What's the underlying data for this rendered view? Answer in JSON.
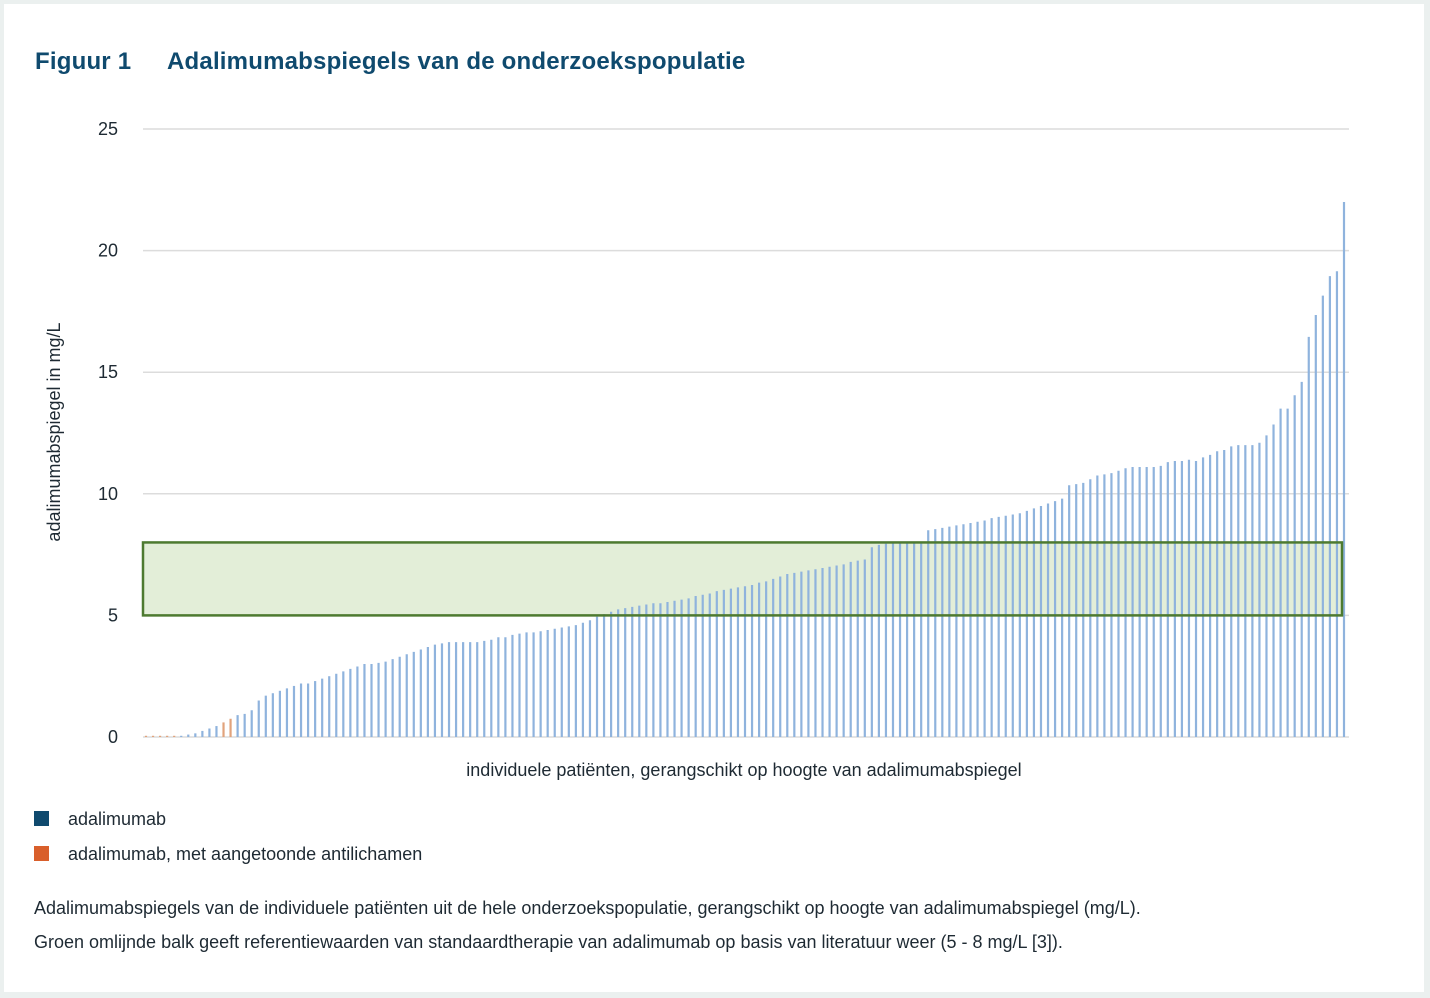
{
  "figure": {
    "label": "Figuur 1",
    "title": "Adalimumabspiegels van de onderzoekspopulatie"
  },
  "legend": [
    {
      "label": "adalimumab",
      "color": "#0f4a6e"
    },
    {
      "label": "adalimumab, met aangetoonde antilichamen",
      "color": "#d95f2b"
    }
  ],
  "caption": [
    "Adalimumabspiegels van de individuele patiënten uit de hele onderzoekspopulatie, gerangschikt op hoogte van adalimumabspiegel (mg/L).",
    "Groen omlijnde balk geeft referentiewaarden van standaardtherapie van adalimumab op basis van literatuur weer (5 - 8 mg/L [3])."
  ],
  "chart_data": {
    "type": "bar",
    "title": "",
    "xlabel": "individuele patiënten, gerangschikt op hoogte van adalimumabspiegel",
    "ylabel": "adalimumabspiegel in mg/L",
    "ylim": [
      0,
      25
    ],
    "yticks": [
      0,
      5,
      10,
      15,
      20,
      25
    ],
    "grid": true,
    "series_colors": {
      "adalimumab": "#8fb3dd",
      "antilichamen": "#e1a37c"
    },
    "reference_band": {
      "low": 5,
      "high": 8,
      "fill": "#e3eed8",
      "stroke": "#4d7a30"
    },
    "values": [
      0.05,
      0.05,
      0.05,
      0.05,
      0.05,
      0.05,
      0.1,
      0.15,
      0.25,
      0.35,
      0.45,
      0.6,
      0.75,
      0.9,
      0.95,
      1.1,
      1.5,
      1.7,
      1.8,
      1.9,
      2.0,
      2.1,
      2.2,
      2.2,
      2.3,
      2.4,
      2.5,
      2.6,
      2.7,
      2.8,
      2.9,
      3.0,
      3.0,
      3.05,
      3.1,
      3.2,
      3.3,
      3.4,
      3.5,
      3.6,
      3.7,
      3.8,
      3.85,
      3.9,
      3.9,
      3.9,
      3.9,
      3.9,
      3.95,
      4.0,
      4.1,
      4.1,
      4.2,
      4.25,
      4.3,
      4.3,
      4.35,
      4.4,
      4.45,
      4.5,
      4.55,
      4.6,
      4.7,
      4.8,
      4.95,
      5.05,
      5.15,
      5.25,
      5.3,
      5.35,
      5.4,
      5.45,
      5.5,
      5.5,
      5.55,
      5.6,
      5.65,
      5.7,
      5.8,
      5.85,
      5.9,
      6.0,
      6.05,
      6.1,
      6.15,
      6.2,
      6.25,
      6.35,
      6.4,
      6.5,
      6.6,
      6.7,
      6.75,
      6.8,
      6.85,
      6.9,
      6.95,
      7.0,
      7.05,
      7.1,
      7.2,
      7.25,
      7.3,
      7.8,
      7.9,
      7.95,
      8.0,
      8.0,
      8.0,
      8.0,
      8.0,
      8.5,
      8.55,
      8.6,
      8.65,
      8.7,
      8.75,
      8.8,
      8.85,
      8.9,
      9.0,
      9.05,
      9.1,
      9.15,
      9.2,
      9.3,
      9.4,
      9.5,
      9.6,
      9.7,
      9.8,
      10.35,
      10.4,
      10.45,
      10.6,
      10.75,
      10.8,
      10.85,
      10.95,
      11.05,
      11.1,
      11.1,
      11.1,
      11.1,
      11.15,
      11.3,
      11.35,
      11.35,
      11.4,
      11.35,
      11.5,
      11.6,
      11.75,
      11.8,
      11.95,
      12.0,
      12.0,
      12.0,
      12.1,
      12.4,
      12.85,
      13.5,
      13.5,
      14.05,
      14.6,
      16.45,
      17.35,
      18.15,
      18.95,
      19.15,
      22.0
    ],
    "antibody": [
      0,
      1,
      2,
      3,
      4,
      11,
      12
    ]
  }
}
